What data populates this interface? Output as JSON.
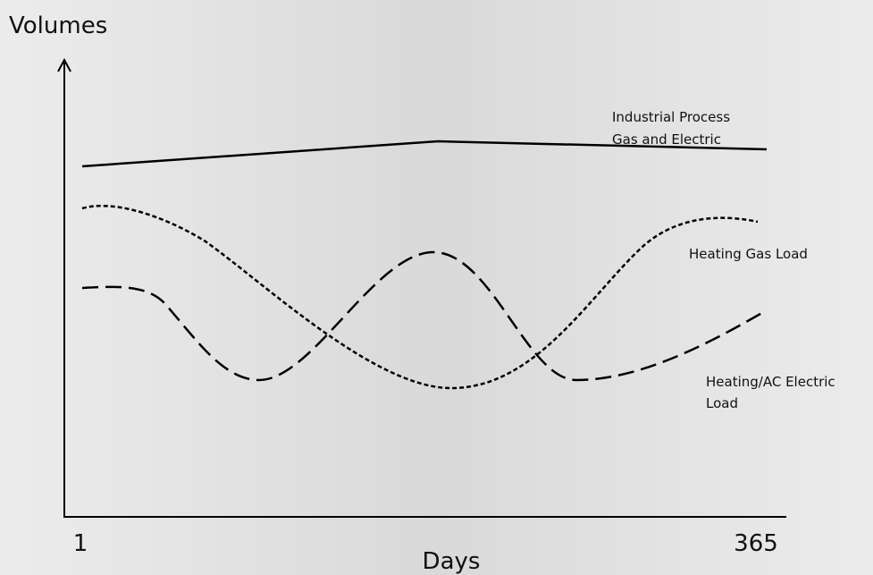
{
  "axes": {
    "y_label": "Volumes",
    "x_label": "Days",
    "x_ticks": [
      1,
      365
    ]
  },
  "series_labels": [
    [
      "Industrial Process",
      "Gas and Electric"
    ],
    [
      "Heating Gas Load"
    ],
    [
      "Heating/AC Electric",
      "Load"
    ]
  ]
}
